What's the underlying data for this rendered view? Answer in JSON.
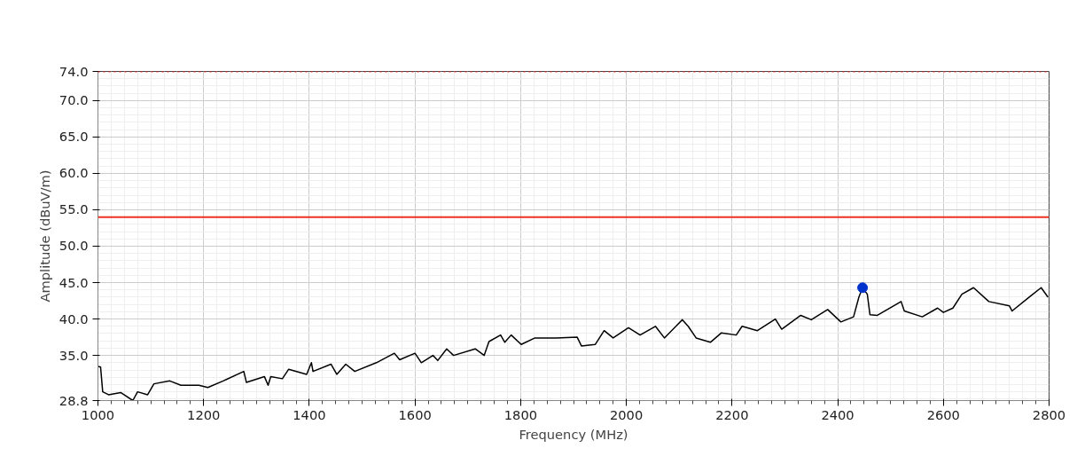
{
  "chart_data": {
    "type": "line",
    "xlabel": "Frequency (MHz)",
    "ylabel": "Amplitude (dBuV/m)",
    "xlim": [
      1000,
      2800
    ],
    "ylim": [
      28.8,
      74.0
    ],
    "xticks": [
      1000,
      1200,
      1400,
      1600,
      1800,
      2000,
      2200,
      2400,
      2600,
      2800
    ],
    "yticks": [
      {
        "value": 28.8,
        "label": "28.8"
      },
      {
        "value": 35,
        "label": "35.0"
      },
      {
        "value": 40,
        "label": "40.0"
      },
      {
        "value": 45,
        "label": "45.0"
      },
      {
        "value": 50,
        "label": "50.0"
      },
      {
        "value": 55,
        "label": "55.0"
      },
      {
        "value": 60,
        "label": "60.0"
      },
      {
        "value": 65,
        "label": "65.0"
      },
      {
        "value": 70,
        "label": "70.0"
      },
      {
        "value": 74,
        "label": "74.0"
      }
    ],
    "grid": true,
    "series": [
      {
        "color": "#000000",
        "x": [
          1000,
          1005,
          1009,
          1020,
          1043,
          1066,
          1075,
          1094,
          1106,
          1136,
          1157,
          1191,
          1208,
          1237,
          1276,
          1281,
          1315,
          1322,
          1327,
          1349,
          1361,
          1395,
          1404,
          1407,
          1441,
          1452,
          1469,
          1486,
          1527,
          1561,
          1571,
          1600,
          1612,
          1634,
          1643,
          1660,
          1673,
          1714,
          1731,
          1740,
          1762,
          1770,
          1782,
          1801,
          1827,
          1867,
          1907,
          1915,
          1941,
          1958,
          1975,
          2004,
          2026,
          2055,
          2072,
          2106,
          2117,
          2132,
          2159,
          2180,
          2208,
          2219,
          2248,
          2282,
          2294,
          2330,
          2350,
          2381,
          2406,
          2430,
          2440,
          2447,
          2456,
          2461,
          2475,
          2520,
          2526,
          2560,
          2589,
          2600,
          2618,
          2635,
          2657,
          2686,
          2725,
          2730,
          2764,
          2785,
          2798
        ],
        "values": [
          33.5,
          33.4,
          30.0,
          29.6,
          29.9,
          28.8,
          30.0,
          29.6,
          31.1,
          31.5,
          30.9,
          30.9,
          30.6,
          31.5,
          32.8,
          31.3,
          32.1,
          30.9,
          32.1,
          31.8,
          33.1,
          32.4,
          34.0,
          32.8,
          33.8,
          32.4,
          33.8,
          32.8,
          34.0,
          35.3,
          34.4,
          35.3,
          34.0,
          35.0,
          34.3,
          35.9,
          35.0,
          35.9,
          35.0,
          36.9,
          37.8,
          36.8,
          37.8,
          36.5,
          37.4,
          37.4,
          37.5,
          36.3,
          36.5,
          38.4,
          37.4,
          38.8,
          37.8,
          39.0,
          37.4,
          39.9,
          39.0,
          37.4,
          36.8,
          38.1,
          37.8,
          39.0,
          38.4,
          40.0,
          38.6,
          40.5,
          39.9,
          41.3,
          39.6,
          40.3,
          43.0,
          44.3,
          43.4,
          40.6,
          40.5,
          42.4,
          41.1,
          40.3,
          41.5,
          40.9,
          41.5,
          43.4,
          44.3,
          42.4,
          41.8,
          41.1,
          43.1,
          44.3,
          43.0
        ]
      },
      {
        "type": "scatter",
        "marker": "circle",
        "color": "#0033cc",
        "x": [
          2447
        ],
        "values": [
          44.3
        ]
      }
    ],
    "ref_lines": [
      {
        "axis": "y",
        "value": 74,
        "color": "#ff2020",
        "line_style": "dotted"
      },
      {
        "axis": "y",
        "value": 54,
        "color": "#ee3322",
        "line_style": "solid"
      }
    ]
  }
}
